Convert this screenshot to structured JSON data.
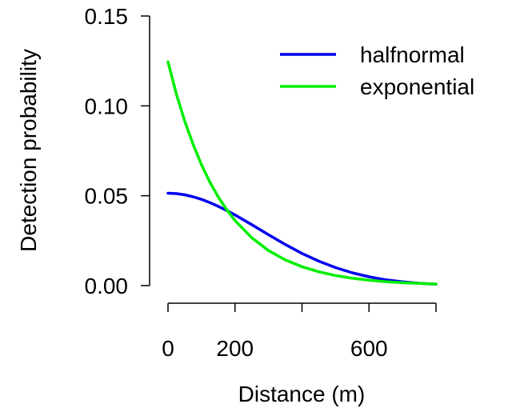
{
  "chart_data": {
    "type": "line",
    "title": "",
    "xlabel": "Distance  (m)",
    "ylabel": "Detection probability",
    "xlim": [
      0,
      800
    ],
    "ylim": [
      0,
      0.15
    ],
    "x_ticks": [
      0,
      200,
      400,
      600,
      800
    ],
    "x_tick_labels": [
      "0",
      "200",
      "",
      "600",
      ""
    ],
    "y_ticks": [
      0.0,
      0.05,
      0.1,
      0.15
    ],
    "y_tick_labels": [
      "0.00",
      "0.05",
      "0.10",
      "0.15"
    ],
    "grid": false,
    "legend_position": "top-right",
    "x": [
      0,
      25,
      50,
      75,
      100,
      125,
      150,
      175,
      200,
      250,
      300,
      350,
      400,
      450,
      500,
      550,
      600,
      650,
      700,
      750,
      800
    ],
    "series": [
      {
        "name": "halfnormal",
        "color": "#0000ee",
        "values": [
          0.0514,
          0.0512,
          0.0505,
          0.0494,
          0.048,
          0.0462,
          0.0441,
          0.0418,
          0.0393,
          0.0339,
          0.0283,
          0.0229,
          0.0179,
          0.0136,
          0.01,
          0.0071,
          0.0049,
          0.0032,
          0.0021,
          0.0013,
          0.0008
        ]
      },
      {
        "name": "exponential",
        "color": "#00ee00",
        "values": [
          0.1245,
          0.1065,
          0.0915,
          0.0785,
          0.0672,
          0.0576,
          0.0493,
          0.0423,
          0.0362,
          0.0266,
          0.0195,
          0.0143,
          0.0105,
          0.0077,
          0.0056,
          0.0041,
          0.003,
          0.0022,
          0.0016,
          0.0012,
          0.0009
        ]
      }
    ]
  }
}
